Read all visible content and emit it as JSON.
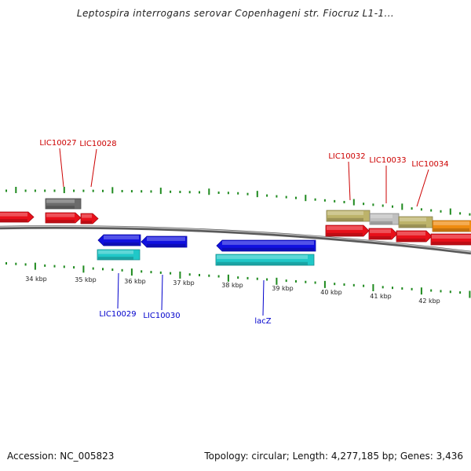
{
  "title": "Leptospira interrogans serovar Copenhageni str. Fiocruz L1-1...",
  "footer": {
    "accession": "Accession: NC_005823",
    "topology": "Topology: circular; Length: 4,277,185 bp; Genes: 3,436"
  },
  "colors": {
    "axis": "#888888",
    "tick": "#1f8a1f",
    "label_forward": "#cc0000",
    "label_reverse": "#0000cc",
    "red": "#e8101a",
    "gray": "#6b6b6b",
    "blue": "#1010e0",
    "cyan": "#20c8c8",
    "olive": "#bdb36a",
    "silver": "#c0c0c0",
    "orange": "#f08c10"
  },
  "kbp_labels": [
    "34 kbp",
    "35 kbp",
    "36 kbp",
    "37 kbp",
    "38 kbp",
    "39 kbp",
    "40 kbp",
    "41 kbp",
    "42 kbp"
  ],
  "gene_labels_top": [
    "LIC10027",
    "LIC10028",
    "LIC10032",
    "LIC10033",
    "LIC10034"
  ],
  "gene_labels_bottom": [
    "LIC10029",
    "LIC10030",
    "lacZ"
  ]
}
